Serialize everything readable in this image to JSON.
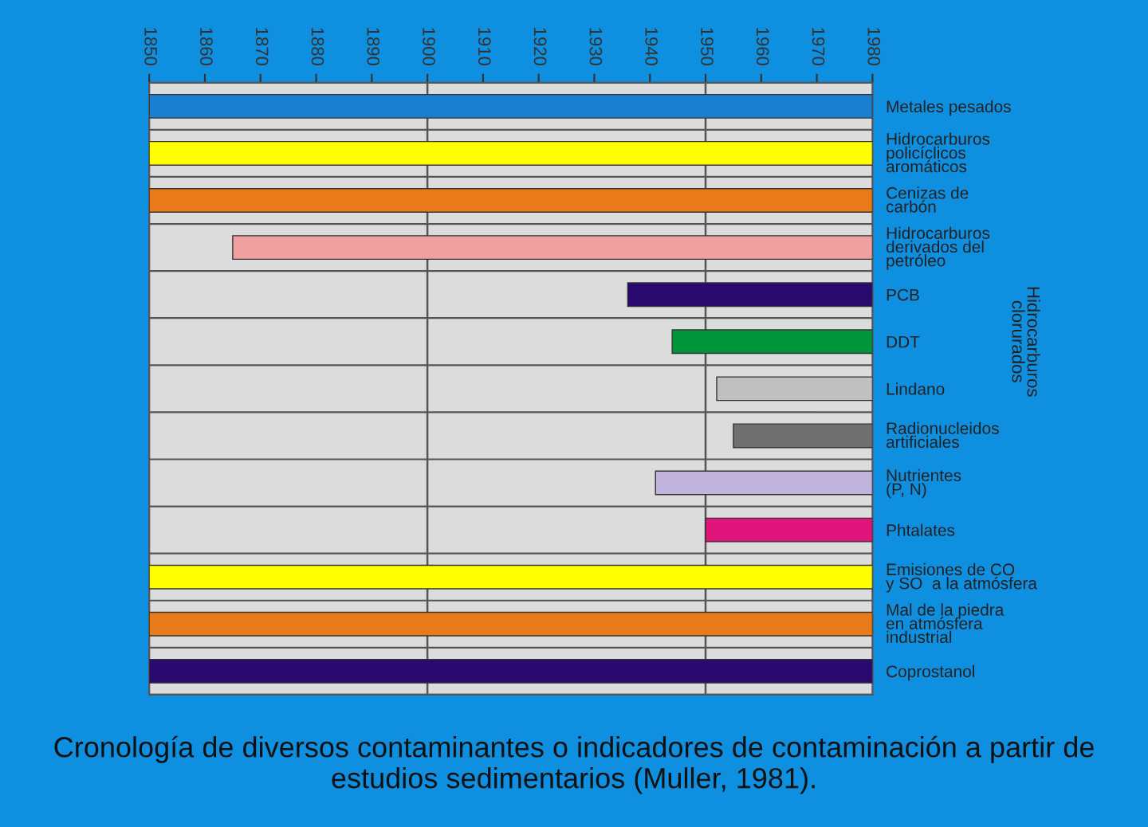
{
  "chart_data": {
    "type": "bar",
    "orientation": "horizontal",
    "title": "Cronología de diversos contaminantes o indicadores de contaminación a partir de estudios sedimentarios (Muller, 1981).",
    "categories": [
      "Metales pesados",
      "Hidrocarburos\npolicíclicos\naromáticos",
      "Cenizas de\ncarbón",
      "Hidrocarburos\nderivados del\npetróleo",
      "PCB",
      "DDT",
      "Lindano",
      "Radionucleidos\nartificiales",
      "Nutrientes\n(P, N)",
      "Phtalates",
      "Emisiones de CO\ny SO  a la atmósfera",
      "Mal de la piedra\nen atmósfera\nindustrial",
      "Coprostanol"
    ],
    "base": [
      1850,
      1850,
      1850,
      1865,
      1936,
      1944,
      1952,
      1955,
      1941,
      1950,
      1850,
      1850,
      1850
    ],
    "values": [
      130,
      130,
      130,
      115,
      44,
      36,
      28,
      25,
      39,
      30,
      130,
      130,
      130
    ],
    "colors": [
      "#1a7fd0",
      "#ffff00",
      "#e87a1a",
      "#f0a0a0",
      "#2a0a6e",
      "#00963c",
      "#c0c0c0",
      "#707070",
      "#c0b4dc",
      "#e0147a",
      "#ffff00",
      "#e87a1a",
      "#2a0a6e"
    ],
    "xlim": [
      1850,
      1980
    ],
    "xticks": [
      1850,
      1860,
      1870,
      1880,
      1890,
      1900,
      1910,
      1920,
      1930,
      1940,
      1950,
      1960,
      1970,
      1980
    ],
    "ref_lines": [
      {
        "axis": "x",
        "value": 1900,
        "color": "#555555"
      },
      {
        "axis": "x",
        "value": 1950,
        "color": "#555555"
      }
    ],
    "annotations": [
      "Hidrocarburos\nclorurados"
    ],
    "grid": false,
    "legend": false
  }
}
